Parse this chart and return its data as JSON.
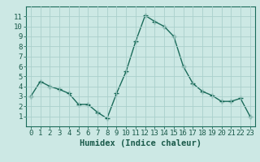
{
  "x": [
    0,
    1,
    2,
    3,
    4,
    5,
    6,
    7,
    8,
    9,
    10,
    11,
    12,
    13,
    14,
    15,
    16,
    17,
    18,
    19,
    20,
    21,
    22,
    23
  ],
  "y": [
    3.0,
    4.5,
    4.0,
    3.7,
    3.3,
    2.2,
    2.2,
    1.4,
    0.8,
    3.3,
    5.5,
    8.5,
    11.1,
    10.5,
    10.0,
    9.0,
    6.0,
    4.3,
    3.5,
    3.1,
    2.5,
    2.5,
    2.8,
    1.0
  ],
  "line_color": "#1a6b5a",
  "marker_color": "#1a6b5a",
  "bg_color": "#cce8e4",
  "grid_color": "#aad0cc",
  "axis_color": "#1a6b5a",
  "xlabel": "Humidex (Indice chaleur)",
  "xlim": [
    -0.5,
    23.5
  ],
  "ylim": [
    0,
    12
  ],
  "yticks": [
    1,
    2,
    3,
    4,
    5,
    6,
    7,
    8,
    9,
    10,
    11
  ],
  "xticks": [
    0,
    1,
    2,
    3,
    4,
    5,
    6,
    7,
    8,
    9,
    10,
    11,
    12,
    13,
    14,
    15,
    16,
    17,
    18,
    19,
    20,
    21,
    22,
    23
  ],
  "label_color": "#1a5a4a",
  "xlabel_fontsize": 7.5,
  "tick_fontsize": 6.5
}
